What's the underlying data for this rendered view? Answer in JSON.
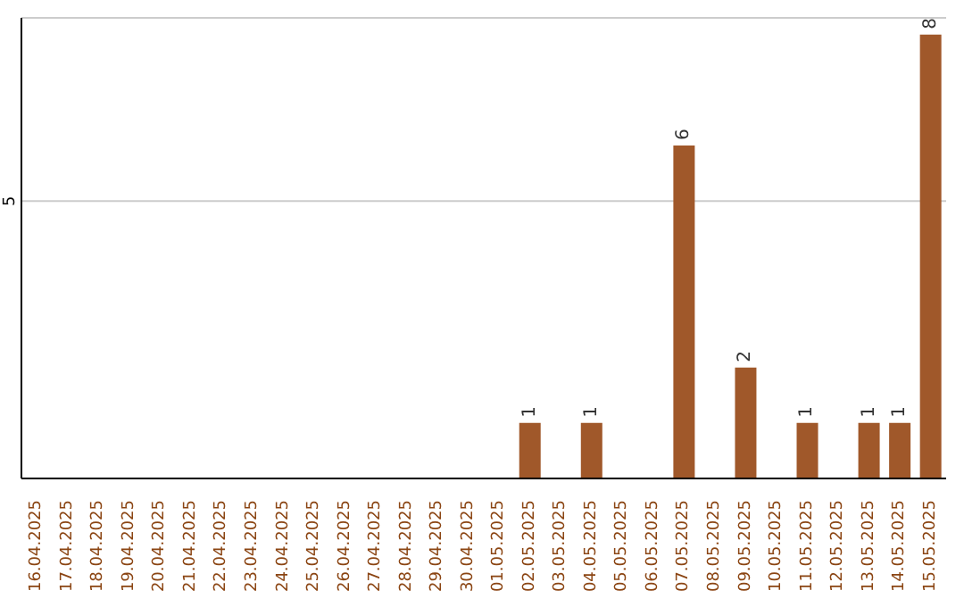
{
  "chart_data": {
    "type": "bar",
    "categories": [
      "16.04.2025",
      "17.04.2025",
      "18.04.2025",
      "19.04.2025",
      "20.04.2025",
      "21.04.2025",
      "22.04.2025",
      "23.04.2025",
      "24.04.2025",
      "25.04.2025",
      "26.04.2025",
      "27.04.2025",
      "28.04.2025",
      "29.04.2025",
      "30.04.2025",
      "01.05.2025",
      "02.05.2025",
      "03.05.2025",
      "04.05.2025",
      "05.05.2025",
      "06.05.2025",
      "07.05.2025",
      "08.05.2025",
      "09.05.2025",
      "10.05.2025",
      "11.05.2025",
      "12.05.2025",
      "13.05.2025",
      "14.05.2025",
      "15.05.2025"
    ],
    "values": [
      null,
      null,
      null,
      null,
      null,
      null,
      null,
      null,
      null,
      null,
      null,
      null,
      null,
      null,
      null,
      null,
      1,
      null,
      1,
      null,
      null,
      6,
      null,
      2,
      null,
      1,
      null,
      1,
      1,
      8
    ],
    "color": "#a0582a",
    "ylim": [
      0,
      8.3
    ],
    "yticks": [
      5
    ],
    "grid": "y",
    "data_labels": true
  }
}
